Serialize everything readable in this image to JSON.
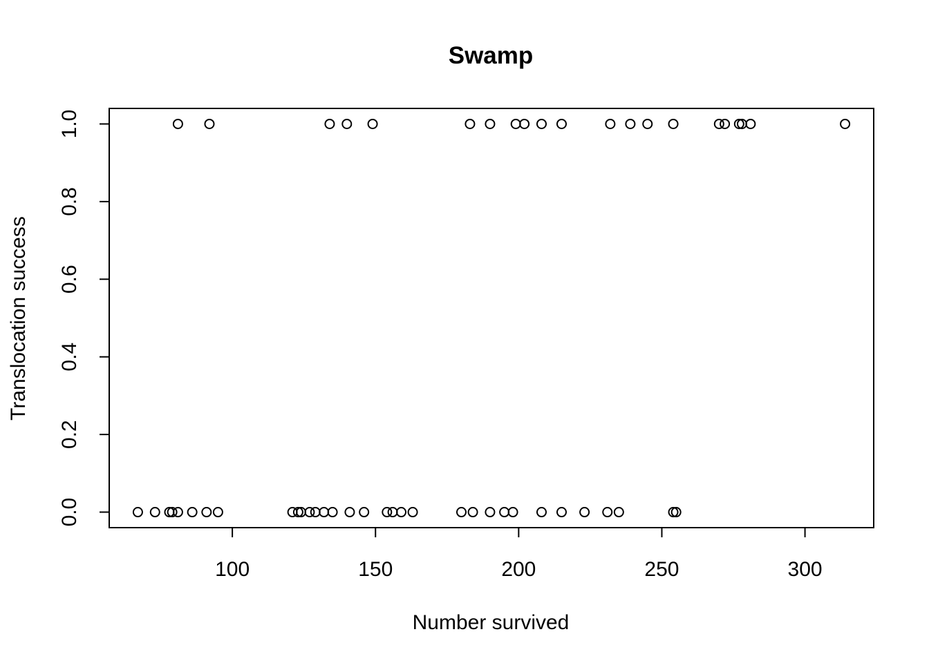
{
  "chart_data": {
    "type": "scatter",
    "title": "Swamp",
    "xlabel": "Number survived",
    "ylabel": "Translocation success",
    "xlim": [
      57,
      324
    ],
    "ylim": [
      -0.04,
      1.04
    ],
    "xticks": [
      100,
      150,
      200,
      250,
      300
    ],
    "yticks": [
      0.0,
      0.2,
      0.4,
      0.6,
      0.8,
      1.0
    ],
    "ytick_labels": [
      "0.0",
      "0.2",
      "0.4",
      "0.6",
      "0.8",
      "1.0"
    ],
    "grid": false,
    "legend": "none",
    "marker": "open-circle",
    "colors": {
      "points": "#000000",
      "axes": "#000000",
      "background": "#ffffff"
    },
    "series": [
      {
        "x": [
          81,
          92,
          134,
          140,
          149,
          183,
          190,
          199,
          202,
          208,
          215,
          232,
          239,
          245,
          254,
          270,
          272,
          277,
          278,
          281,
          314,
          67,
          73,
          78,
          79,
          81,
          86,
          91,
          95,
          121,
          123,
          124,
          127,
          129,
          132,
          135,
          141,
          146,
          154,
          156,
          159,
          163,
          180,
          184,
          190,
          195,
          198,
          208,
          215,
          223,
          231,
          235,
          254,
          255
        ],
        "y": [
          1,
          1,
          1,
          1,
          1,
          1,
          1,
          1,
          1,
          1,
          1,
          1,
          1,
          1,
          1,
          1,
          1,
          1,
          1,
          1,
          1,
          0,
          0,
          0,
          0,
          0,
          0,
          0,
          0,
          0,
          0,
          0,
          0,
          0,
          0,
          0,
          0,
          0,
          0,
          0,
          0,
          0,
          0,
          0,
          0,
          0,
          0,
          0,
          0,
          0,
          0,
          0,
          0,
          0
        ]
      }
    ]
  }
}
